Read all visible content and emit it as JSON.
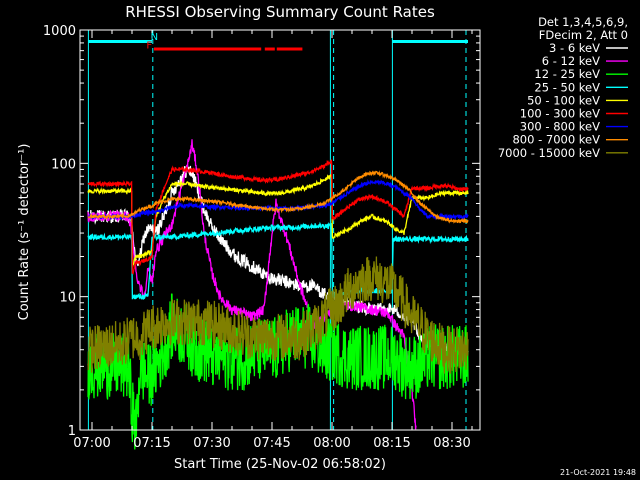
{
  "chart_data": {
    "type": "line",
    "title": "RHESSI Observing Summary Count Rates",
    "xlabel": "Start Time (25-Nov-02 06:58:02)",
    "ylabel": "Count Rate (s⁻¹ detector⁻¹)",
    "yscale": "log",
    "ylim": [
      1,
      1000
    ],
    "xlim_minutes": [
      -3,
      97
    ],
    "x_ticks": [
      {
        "value": 0,
        "label": "07:00"
      },
      {
        "value": 15,
        "label": "07:15"
      },
      {
        "value": 30,
        "label": "07:30"
      },
      {
        "value": 45,
        "label": "07:45"
      },
      {
        "value": 60,
        "label": "08:00"
      },
      {
        "value": 75,
        "label": "08:15"
      },
      {
        "value": 90,
        "label": "08:30"
      }
    ],
    "y_ticks": [
      {
        "value": 1,
        "label": "1"
      },
      {
        "value": 10,
        "label": "10"
      },
      {
        "value": 100,
        "label": "100"
      },
      {
        "value": 1000,
        "label": "1000"
      }
    ],
    "legend_header": [
      "Det 1,3,4,5,6,9,",
      "FDecim 2, Att 0"
    ],
    "legend_position": "right",
    "series": [
      {
        "name": "3 - 6 keV",
        "color": "#ffffff",
        "noise": 0.05,
        "x": [
          -1,
          4,
          8,
          9,
          10,
          11,
          12,
          13,
          14,
          15,
          16,
          18,
          20,
          22,
          23,
          24,
          25,
          26,
          27,
          28,
          30,
          33,
          36,
          40,
          44,
          48,
          52,
          55,
          57,
          59,
          60,
          62,
          64,
          66,
          70,
          74,
          76,
          78,
          80,
          82,
          84,
          86,
          88,
          90,
          92,
          94
        ],
        "y": [
          40,
          40,
          40,
          40,
          35,
          17,
          20,
          28,
          32,
          32,
          30,
          40,
          60,
          75,
          85,
          90,
          85,
          70,
          55,
          45,
          33,
          25,
          20,
          17,
          14,
          13,
          12,
          12,
          11,
          10,
          10,
          9,
          9,
          8.5,
          8,
          8,
          8,
          7,
          6.5,
          5,
          4.5,
          4,
          4,
          4,
          4,
          4
        ]
      },
      {
        "name": "6 - 12 keV",
        "color": "#ff00ff",
        "noise": 0.04,
        "x": [
          -1,
          4,
          8,
          9,
          10,
          11,
          12,
          13,
          14,
          15,
          16,
          18,
          20,
          22,
          24,
          25,
          26,
          27,
          28,
          30,
          32,
          35,
          38,
          40,
          43,
          45,
          46,
          47,
          48,
          49,
          50,
          52,
          54,
          56,
          58,
          60,
          62,
          66,
          70,
          74,
          76,
          78,
          79,
          80,
          81
        ],
        "y": [
          40,
          40,
          40,
          40,
          30,
          15,
          12,
          10,
          16,
          13,
          22,
          28,
          35,
          60,
          100,
          140,
          100,
          60,
          30,
          15,
          10,
          8,
          7.5,
          7,
          8,
          30,
          50,
          40,
          32,
          26,
          20,
          12,
          8,
          6,
          7,
          8,
          8.5,
          8.5,
          8,
          7.5,
          6,
          5,
          3,
          2,
          1
        ]
      },
      {
        "name": "12 - 25 keV",
        "color": "#00ff00",
        "noise": 0.25,
        "x": [
          -1,
          8,
          9,
          10,
          11,
          12,
          14,
          16,
          18,
          20,
          24,
          26,
          28,
          30,
          34,
          38,
          42,
          46,
          50,
          54,
          58,
          60,
          64,
          70,
          74,
          76,
          78,
          80,
          82,
          84,
          86,
          88,
          90,
          92,
          94
        ],
        "y": [
          3,
          3,
          3,
          1.5,
          1,
          3,
          2.5,
          3,
          4,
          6,
          5,
          4,
          4,
          3.5,
          3.5,
          3.5,
          4,
          4,
          5,
          5,
          4,
          4,
          3.5,
          3.5,
          3.5,
          3.5,
          3,
          3,
          3,
          3.5,
          3.5,
          3.5,
          3.5,
          3.5,
          3.5
        ]
      },
      {
        "name": "25 - 50 keV",
        "color": "#00ffff",
        "noise": 0.02,
        "x": [
          -1,
          9.9,
          10.1,
          14,
          15,
          16,
          20,
          25,
          30,
          35,
          40,
          45,
          50,
          55,
          58,
          59.9,
          60.1,
          62,
          66,
          70,
          74,
          75,
          75.3,
          78,
          82,
          86,
          90,
          94
        ],
        "y": [
          28,
          28,
          10,
          10,
          28,
          28,
          28,
          29,
          30,
          31,
          32,
          33,
          33,
          34,
          34,
          34,
          10,
          10.5,
          11,
          11,
          11,
          11,
          27,
          27,
          27,
          27,
          27,
          27
        ]
      },
      {
        "name": "50 - 100 keV",
        "color": "#ffff00",
        "noise": 0.015,
        "x": [
          -1,
          9.9,
          10.1,
          11,
          12,
          15,
          16,
          18,
          20,
          22,
          24,
          26,
          30,
          34,
          38,
          42,
          46,
          50,
          54,
          56,
          58,
          59.9,
          60.1,
          62,
          64,
          66,
          68,
          70,
          72,
          74,
          76,
          78,
          80,
          82,
          84,
          86,
          88,
          90,
          92,
          94
        ],
        "y": [
          62,
          62,
          17,
          20,
          20,
          22,
          40,
          55,
          70,
          70,
          70,
          68,
          66,
          64,
          62,
          60,
          59,
          62,
          66,
          70,
          75,
          80,
          28,
          30,
          32,
          35,
          38,
          40,
          38,
          36,
          32,
          30,
          55,
          55,
          55,
          58,
          60,
          60,
          60,
          60
        ]
      },
      {
        "name": "100 - 300 keV",
        "color": "#ff0000",
        "noise": 0.015,
        "x": [
          -1,
          9.9,
          10.1,
          11,
          12,
          15,
          16,
          18,
          20,
          22,
          24,
          26,
          30,
          34,
          38,
          42,
          46,
          50,
          54,
          56,
          58,
          59.9,
          60.1,
          62,
          64,
          66,
          68,
          70,
          72,
          74,
          76,
          78,
          80,
          82,
          84,
          86,
          88,
          90,
          92,
          94
        ],
        "y": [
          70,
          70,
          15,
          18,
          18,
          20,
          45,
          65,
          90,
          90,
          90,
          88,
          85,
          80,
          78,
          75,
          75,
          80,
          85,
          90,
          95,
          105,
          38,
          42,
          47,
          52,
          55,
          56,
          54,
          50,
          45,
          40,
          65,
          65,
          65,
          67,
          68,
          66,
          64,
          64
        ]
      },
      {
        "name": "300 - 800 keV",
        "color": "#0000ff",
        "noise": 0.015,
        "x": [
          -1,
          8,
          9.9,
          10.1,
          12,
          15,
          16,
          18,
          20,
          22,
          24,
          26,
          30,
          34,
          38,
          42,
          46,
          50,
          54,
          58,
          60,
          62,
          64,
          66,
          68,
          70,
          72,
          74,
          76,
          78,
          80,
          82,
          84,
          86,
          88,
          90,
          92,
          94
        ],
        "y": [
          40,
          40,
          40,
          40,
          42,
          43,
          43,
          45,
          47,
          48,
          48,
          48,
          47,
          47,
          46,
          46,
          46,
          46,
          47,
          48,
          50,
          55,
          60,
          65,
          70,
          72,
          72,
          70,
          66,
          60,
          55,
          45,
          40,
          40,
          40,
          40,
          40,
          40
        ]
      },
      {
        "name": "800 - 7000 keV",
        "color": "#ff8c00",
        "noise": 0.012,
        "x": [
          -1,
          8,
          10,
          12,
          15,
          16,
          18,
          20,
          22,
          24,
          26,
          30,
          34,
          38,
          42,
          46,
          50,
          54,
          58,
          60,
          62,
          64,
          66,
          68,
          70,
          72,
          74,
          76,
          78,
          80,
          82,
          84,
          86,
          88,
          90,
          92,
          94
        ],
        "y": [
          40,
          40,
          41,
          45,
          48,
          50,
          52,
          54,
          54,
          54,
          53,
          52,
          50,
          48,
          46,
          45,
          45,
          47,
          50,
          55,
          60,
          67,
          75,
          82,
          85,
          84,
          80,
          75,
          68,
          60,
          50,
          45,
          40,
          38,
          37,
          37,
          37
        ]
      },
      {
        "name": "7000 - 15000 keV",
        "color": "#808000",
        "noise": 0.18,
        "x": [
          -1,
          8,
          10,
          12,
          15,
          16,
          18,
          20,
          24,
          28,
          32,
          36,
          40,
          44,
          48,
          52,
          56,
          58,
          60,
          62,
          64,
          66,
          68,
          70,
          72,
          74,
          76,
          78,
          80,
          82,
          84,
          86,
          88,
          90,
          92,
          94
        ],
        "y": [
          4,
          4.5,
          5,
          5,
          6,
          6,
          6.5,
          6.5,
          6.5,
          6.5,
          6,
          5.5,
          5,
          5,
          5,
          5,
          6,
          7,
          8,
          9,
          11,
          12.5,
          13.5,
          14,
          13.5,
          12.5,
          11,
          9,
          7,
          6,
          5,
          4.5,
          4,
          4,
          4,
          4
        ]
      }
    ],
    "annotations": [
      {
        "text": "N",
        "color": "#00ffff",
        "x": 15.6,
        "y": 900
      },
      {
        "text": "F",
        "color": "#ff0000",
        "x": 14.3,
        "y": 780
      }
    ],
    "flags": [
      {
        "label": "night",
        "color": "#00ffff",
        "intervals": [
          [
            -1,
            15
          ],
          [
            75,
            94
          ]
        ],
        "y": 820
      },
      {
        "label": "flare",
        "color": "#ff0000",
        "intervals": [
          [
            15.5,
            42.3
          ],
          [
            43.2,
            45.7
          ],
          [
            46.2,
            52.6
          ]
        ],
        "y": 720
      }
    ],
    "vertical_markers": [
      {
        "color": "#00ffff",
        "style": "solid",
        "x": [
          -0.9,
          59.6,
          75.1
        ]
      },
      {
        "color": "#00ffff",
        "style": "dashed",
        "x": [
          15.2,
          60.4,
          93.5
        ]
      }
    ]
  },
  "footer": {
    "timestamp": "21-Oct-2021 19:48"
  }
}
